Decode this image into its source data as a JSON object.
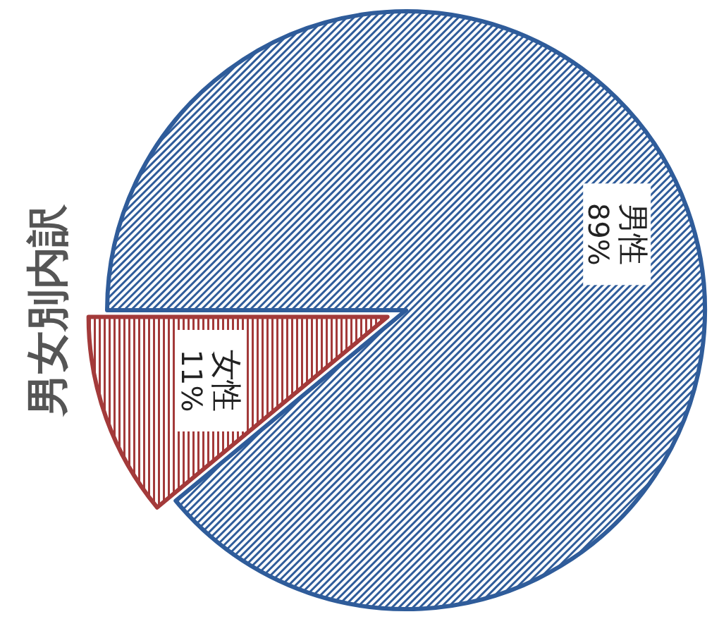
{
  "chart_data": {
    "type": "pie",
    "title": "男女別内訳",
    "categories": [
      "男性",
      "女性"
    ],
    "values": [
      89,
      11
    ],
    "value_labels": [
      "89%",
      "11%"
    ],
    "colors": [
      "#2f5c9a",
      "#a33a3a"
    ]
  }
}
